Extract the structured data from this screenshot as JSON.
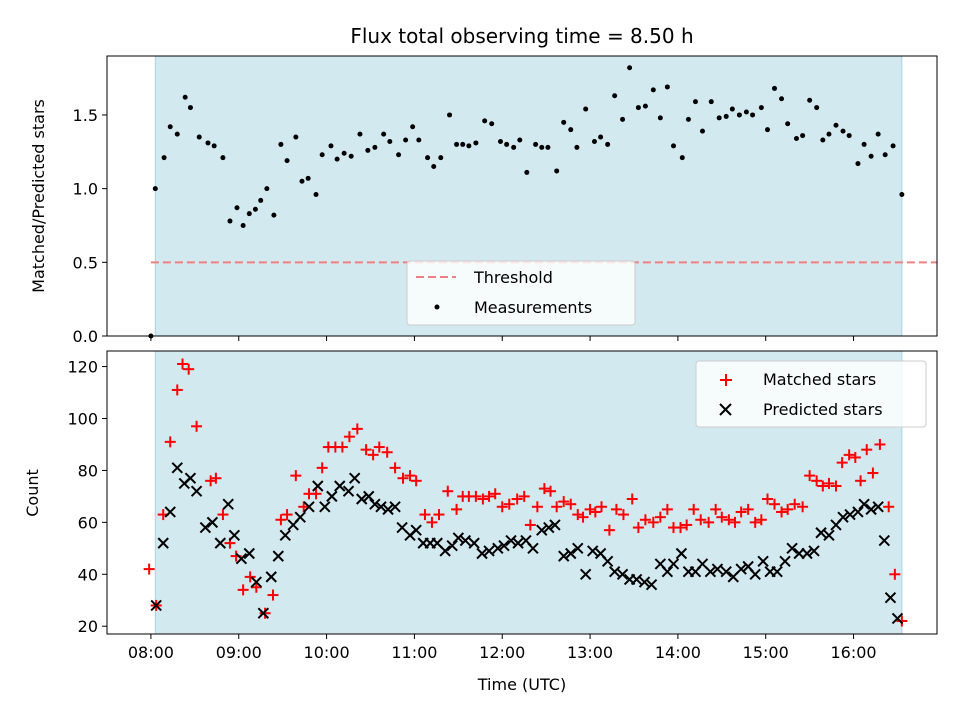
{
  "chart_data": {
    "type": "scatter",
    "title": "Flux total observing time = 8.50 h",
    "xlabel": "Time (UTC)",
    "x_unit": "hours",
    "x_range": [
      7.5,
      16.95
    ],
    "x_ticks": [
      8,
      9,
      10,
      11,
      12,
      13,
      14,
      15,
      16
    ],
    "x_tick_labels": [
      "08:00",
      "09:00",
      "10:00",
      "11:00",
      "12:00",
      "13:00",
      "14:00",
      "15:00",
      "16:00"
    ],
    "observing_window": [
      8.05,
      16.55
    ],
    "colors": {
      "window": "#d3e9f0",
      "window_edge": "#a9d3e0",
      "threshold": "#f08080",
      "matched": "#ff0000",
      "predicted": "#000000",
      "measurements": "#000000"
    },
    "top": {
      "ylabel": "Matched/Predicted stars",
      "ylim": [
        0,
        1.9
      ],
      "y_ticks": [
        0.0,
        0.5,
        1.0,
        1.5
      ],
      "y_tick_labels": [
        "0.0",
        "0.5",
        "1.0",
        "1.5"
      ],
      "threshold": 0.5,
      "legend": {
        "threshold_label": "Threshold",
        "measurements_label": "Measurements",
        "location": "lower-center"
      },
      "ratio": [
        [
          8.0,
          0.0
        ],
        [
          8.05,
          1.0
        ],
        [
          8.15,
          1.21
        ],
        [
          8.22,
          1.42
        ],
        [
          8.3,
          1.37
        ],
        [
          8.39,
          1.62
        ],
        [
          8.45,
          1.55
        ],
        [
          8.55,
          1.35
        ],
        [
          8.65,
          1.31
        ],
        [
          8.72,
          1.29
        ],
        [
          8.82,
          1.21
        ],
        [
          8.9,
          0.78
        ],
        [
          8.98,
          0.87
        ],
        [
          9.05,
          0.75
        ],
        [
          9.12,
          0.83
        ],
        [
          9.19,
          0.86
        ],
        [
          9.25,
          0.92
        ],
        [
          9.32,
          1.0
        ],
        [
          9.4,
          0.82
        ],
        [
          9.48,
          1.3
        ],
        [
          9.55,
          1.19
        ],
        [
          9.65,
          1.35
        ],
        [
          9.72,
          1.05
        ],
        [
          9.79,
          1.07
        ],
        [
          9.88,
          0.96
        ],
        [
          9.95,
          1.23
        ],
        [
          10.05,
          1.29
        ],
        [
          10.12,
          1.2
        ],
        [
          10.2,
          1.24
        ],
        [
          10.28,
          1.22
        ],
        [
          10.38,
          1.37
        ],
        [
          10.47,
          1.26
        ],
        [
          10.55,
          1.28
        ],
        [
          10.65,
          1.37
        ],
        [
          10.72,
          1.32
        ],
        [
          10.82,
          1.23
        ],
        [
          10.9,
          1.33
        ],
        [
          10.98,
          1.42
        ],
        [
          11.05,
          1.33
        ],
        [
          11.15,
          1.21
        ],
        [
          11.22,
          1.15
        ],
        [
          11.3,
          1.21
        ],
        [
          11.4,
          1.5
        ],
        [
          11.48,
          1.3
        ],
        [
          11.55,
          1.3
        ],
        [
          11.62,
          1.29
        ],
        [
          11.7,
          1.31
        ],
        [
          11.8,
          1.46
        ],
        [
          11.88,
          1.44
        ],
        [
          11.98,
          1.32
        ],
        [
          12.05,
          1.3
        ],
        [
          12.13,
          1.28
        ],
        [
          12.2,
          1.33
        ],
        [
          12.28,
          1.11
        ],
        [
          12.38,
          1.3
        ],
        [
          12.45,
          1.28
        ],
        [
          12.52,
          1.28
        ],
        [
          12.62,
          1.12
        ],
        [
          12.7,
          1.45
        ],
        [
          12.78,
          1.4
        ],
        [
          12.85,
          1.28
        ],
        [
          12.95,
          1.54
        ],
        [
          13.05,
          1.32
        ],
        [
          13.12,
          1.35
        ],
        [
          13.2,
          1.3
        ],
        [
          13.28,
          1.63
        ],
        [
          13.37,
          1.47
        ],
        [
          13.45,
          1.82
        ],
        [
          13.55,
          1.55
        ],
        [
          13.63,
          1.56
        ],
        [
          13.72,
          1.67
        ],
        [
          13.8,
          1.48
        ],
        [
          13.88,
          1.69
        ],
        [
          13.95,
          1.29
        ],
        [
          14.05,
          1.21
        ],
        [
          14.12,
          1.47
        ],
        [
          14.2,
          1.59
        ],
        [
          14.28,
          1.39
        ],
        [
          14.38,
          1.59
        ],
        [
          14.47,
          1.48
        ],
        [
          14.55,
          1.49
        ],
        [
          14.62,
          1.54
        ],
        [
          14.7,
          1.5
        ],
        [
          14.78,
          1.52
        ],
        [
          14.85,
          1.5
        ],
        [
          14.95,
          1.55
        ],
        [
          15.02,
          1.4
        ],
        [
          15.1,
          1.68
        ],
        [
          15.18,
          1.61
        ],
        [
          15.25,
          1.44
        ],
        [
          15.35,
          1.34
        ],
        [
          15.42,
          1.36
        ],
        [
          15.5,
          1.6
        ],
        [
          15.58,
          1.55
        ],
        [
          15.65,
          1.33
        ],
        [
          15.72,
          1.37
        ],
        [
          15.8,
          1.43
        ],
        [
          15.88,
          1.39
        ],
        [
          15.95,
          1.36
        ],
        [
          16.05,
          1.17
        ],
        [
          16.12,
          1.3
        ],
        [
          16.2,
          1.22
        ],
        [
          16.28,
          1.37
        ],
        [
          16.36,
          1.23
        ],
        [
          16.45,
          1.29
        ],
        [
          16.55,
          0.96
        ]
      ]
    },
    "bottom": {
      "ylabel": "Count",
      "ylim": [
        17,
        126
      ],
      "y_ticks": [
        20,
        40,
        60,
        80,
        100,
        120
      ],
      "y_tick_labels": [
        "20",
        "40",
        "60",
        "80",
        "100",
        "120"
      ],
      "legend": {
        "matched_label": "Matched stars",
        "predicted_label": "Predicted stars",
        "location": "upper-right"
      },
      "matched": [
        [
          7.98,
          42
        ],
        [
          8.06,
          28
        ],
        [
          8.14,
          63
        ],
        [
          8.22,
          91
        ],
        [
          8.3,
          111
        ],
        [
          8.36,
          121
        ],
        [
          8.43,
          119
        ],
        [
          8.52,
          97
        ],
        [
          8.68,
          76
        ],
        [
          8.74,
          77
        ],
        [
          8.82,
          63
        ],
        [
          8.9,
          52
        ],
        [
          8.97,
          47
        ],
        [
          9.05,
          34
        ],
        [
          9.13,
          39
        ],
        [
          9.2,
          35
        ],
        [
          9.3,
          25
        ],
        [
          9.39,
          32
        ],
        [
          9.48,
          61
        ],
        [
          9.55,
          63
        ],
        [
          9.65,
          78
        ],
        [
          9.74,
          66
        ],
        [
          9.8,
          71
        ],
        [
          9.88,
          71
        ],
        [
          9.95,
          81
        ],
        [
          10.02,
          89
        ],
        [
          10.1,
          89
        ],
        [
          10.18,
          89
        ],
        [
          10.26,
          93
        ],
        [
          10.35,
          96
        ],
        [
          10.45,
          88
        ],
        [
          10.53,
          86
        ],
        [
          10.6,
          89
        ],
        [
          10.69,
          87
        ],
        [
          10.78,
          81
        ],
        [
          10.87,
          77
        ],
        [
          10.95,
          78
        ],
        [
          11.02,
          76
        ],
        [
          11.12,
          63
        ],
        [
          11.2,
          60
        ],
        [
          11.28,
          63
        ],
        [
          11.38,
          72
        ],
        [
          11.48,
          65
        ],
        [
          11.55,
          70
        ],
        [
          11.62,
          70
        ],
        [
          11.7,
          70
        ],
        [
          11.78,
          69
        ],
        [
          11.85,
          70
        ],
        [
          11.92,
          71
        ],
        [
          12.0,
          66
        ],
        [
          12.08,
          67
        ],
        [
          12.17,
          69
        ],
        [
          12.25,
          70
        ],
        [
          12.32,
          59
        ],
        [
          12.4,
          66
        ],
        [
          12.48,
          73
        ],
        [
          12.55,
          72
        ],
        [
          12.62,
          66
        ],
        [
          12.7,
          68
        ],
        [
          12.78,
          67
        ],
        [
          12.86,
          63
        ],
        [
          12.92,
          62
        ],
        [
          13.0,
          65
        ],
        [
          13.06,
          64
        ],
        [
          13.13,
          66
        ],
        [
          13.22,
          57
        ],
        [
          13.3,
          65
        ],
        [
          13.38,
          63
        ],
        [
          13.48,
          69
        ],
        [
          13.55,
          58
        ],
        [
          13.63,
          61
        ],
        [
          13.72,
          60
        ],
        [
          13.8,
          62
        ],
        [
          13.88,
          65
        ],
        [
          13.95,
          58
        ],
        [
          14.03,
          58
        ],
        [
          14.1,
          59
        ],
        [
          14.18,
          65
        ],
        [
          14.26,
          61
        ],
        [
          14.35,
          60
        ],
        [
          14.43,
          65
        ],
        [
          14.5,
          62
        ],
        [
          14.58,
          61
        ],
        [
          14.65,
          60
        ],
        [
          14.72,
          64
        ],
        [
          14.8,
          65
        ],
        [
          14.88,
          60
        ],
        [
          14.95,
          61
        ],
        [
          15.02,
          69
        ],
        [
          15.1,
          67
        ],
        [
          15.18,
          64
        ],
        [
          15.25,
          65
        ],
        [
          15.33,
          67
        ],
        [
          15.42,
          66
        ],
        [
          15.5,
          78
        ],
        [
          15.58,
          76
        ],
        [
          15.65,
          74
        ],
        [
          15.72,
          75
        ],
        [
          15.8,
          74
        ],
        [
          15.87,
          83
        ],
        [
          15.95,
          86
        ],
        [
          16.02,
          85
        ],
        [
          16.08,
          76
        ],
        [
          16.15,
          88
        ],
        [
          16.22,
          79
        ],
        [
          16.3,
          90
        ],
        [
          16.4,
          66
        ],
        [
          16.47,
          40
        ],
        [
          16.55,
          22
        ]
      ],
      "predicted": [
        [
          8.06,
          28
        ],
        [
          8.14,
          52
        ],
        [
          8.22,
          64
        ],
        [
          8.3,
          81
        ],
        [
          8.38,
          75
        ],
        [
          8.45,
          77
        ],
        [
          8.52,
          72
        ],
        [
          8.62,
          58
        ],
        [
          8.7,
          60
        ],
        [
          8.79,
          52
        ],
        [
          8.88,
          67
        ],
        [
          8.95,
          55
        ],
        [
          9.03,
          46
        ],
        [
          9.12,
          48
        ],
        [
          9.2,
          37
        ],
        [
          9.28,
          25
        ],
        [
          9.37,
          39
        ],
        [
          9.45,
          47
        ],
        [
          9.53,
          55
        ],
        [
          9.62,
          59
        ],
        [
          9.7,
          62
        ],
        [
          9.8,
          66
        ],
        [
          9.9,
          74
        ],
        [
          9.98,
          66
        ],
        [
          10.06,
          70
        ],
        [
          10.15,
          74
        ],
        [
          10.25,
          72
        ],
        [
          10.32,
          77
        ],
        [
          10.4,
          69
        ],
        [
          10.48,
          70
        ],
        [
          10.55,
          67
        ],
        [
          10.62,
          66
        ],
        [
          10.7,
          65
        ],
        [
          10.78,
          66
        ],
        [
          10.86,
          58
        ],
        [
          10.95,
          55
        ],
        [
          11.02,
          57
        ],
        [
          11.1,
          52
        ],
        [
          11.18,
          52
        ],
        [
          11.26,
          52
        ],
        [
          11.35,
          49
        ],
        [
          11.43,
          51
        ],
        [
          11.5,
          54
        ],
        [
          11.58,
          53
        ],
        [
          11.68,
          52
        ],
        [
          11.77,
          48
        ],
        [
          11.85,
          49
        ],
        [
          11.95,
          50
        ],
        [
          12.02,
          51
        ],
        [
          12.1,
          53
        ],
        [
          12.18,
          52
        ],
        [
          12.27,
          53
        ],
        [
          12.35,
          50
        ],
        [
          12.45,
          57
        ],
        [
          12.53,
          58
        ],
        [
          12.6,
          59
        ],
        [
          12.7,
          47
        ],
        [
          12.78,
          48
        ],
        [
          12.86,
          50
        ],
        [
          12.95,
          40
        ],
        [
          13.03,
          49
        ],
        [
          13.12,
          48
        ],
        [
          13.2,
          45
        ],
        [
          13.28,
          41
        ],
        [
          13.37,
          40
        ],
        [
          13.45,
          38
        ],
        [
          13.53,
          38
        ],
        [
          13.62,
          37
        ],
        [
          13.7,
          36
        ],
        [
          13.8,
          44
        ],
        [
          13.88,
          41
        ],
        [
          13.95,
          44
        ],
        [
          14.04,
          48
        ],
        [
          14.12,
          41
        ],
        [
          14.2,
          41
        ],
        [
          14.28,
          44
        ],
        [
          14.37,
          41
        ],
        [
          14.45,
          42
        ],
        [
          14.55,
          41
        ],
        [
          14.63,
          39
        ],
        [
          14.72,
          42
        ],
        [
          14.8,
          43
        ],
        [
          14.88,
          40
        ],
        [
          14.97,
          45
        ],
        [
          15.05,
          41
        ],
        [
          15.13,
          41
        ],
        [
          15.22,
          45
        ],
        [
          15.3,
          50
        ],
        [
          15.38,
          48
        ],
        [
          15.47,
          48
        ],
        [
          15.55,
          49
        ],
        [
          15.63,
          56
        ],
        [
          15.72,
          55
        ],
        [
          15.8,
          59
        ],
        [
          15.88,
          62
        ],
        [
          15.96,
          63
        ],
        [
          16.05,
          64
        ],
        [
          16.12,
          67
        ],
        [
          16.2,
          65
        ],
        [
          16.28,
          66
        ],
        [
          16.35,
          53
        ],
        [
          16.42,
          31
        ],
        [
          16.5,
          23
        ]
      ]
    }
  }
}
